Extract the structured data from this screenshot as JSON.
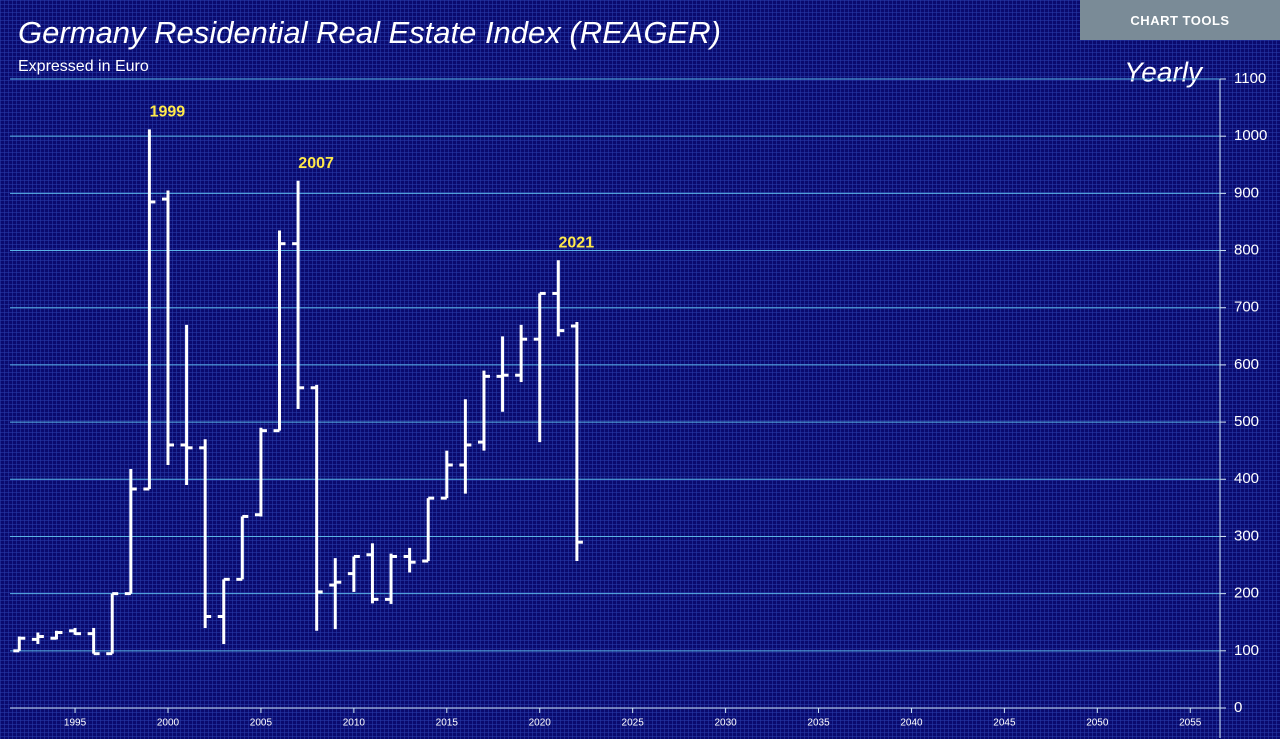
{
  "chart_data": {
    "type": "ohlc",
    "title": "Germany Residential Real Estate Index (REAGER)",
    "subtitle": "Expressed in Euro",
    "period": "Yearly",
    "button": "CHART TOOLS",
    "x": [
      1992,
      1993,
      1994,
      1995,
      1996,
      1997,
      1998,
      1999,
      2000,
      2001,
      2002,
      2003,
      2004,
      2005,
      2006,
      2007,
      2008,
      2009,
      2010,
      2011,
      2012,
      2013,
      2014,
      2015,
      2016,
      2017,
      2018,
      2019,
      2020,
      2021,
      2022
    ],
    "series": [
      {
        "color": "#ffffff",
        "open": [
          100,
          120,
          122,
          135,
          130,
          95,
          200,
          383,
          890,
          460,
          455,
          160,
          225,
          338,
          485,
          812,
          560,
          215,
          235,
          268,
          190,
          265,
          257,
          367,
          425,
          465,
          580,
          582,
          645,
          725,
          668
        ],
        "high": [
          125,
          132,
          135,
          140,
          140,
          200,
          418,
          1012,
          905,
          670,
          470,
          225,
          335,
          490,
          835,
          922,
          565,
          262,
          265,
          288,
          270,
          280,
          367,
          450,
          540,
          590,
          650,
          670,
          725,
          783,
          675
        ],
        "low": [
          100,
          112,
          120,
          128,
          95,
          95,
          200,
          383,
          425,
          390,
          140,
          112,
          225,
          335,
          485,
          523,
          135,
          138,
          203,
          183,
          182,
          237,
          257,
          367,
          375,
          450,
          518,
          570,
          465,
          650,
          257
        ],
        "close": [
          122,
          125,
          132,
          130,
          95,
          200,
          383,
          885,
          460,
          455,
          160,
          225,
          335,
          485,
          812,
          560,
          203,
          220,
          265,
          190,
          265,
          255,
          367,
          425,
          460,
          580,
          582,
          645,
          725,
          660,
          290
        ]
      }
    ],
    "annotations": [
      {
        "text": "1999",
        "x": 1999
      },
      {
        "text": "2007",
        "x": 2007
      },
      {
        "text": "2021",
        "x": 2021
      }
    ],
    "annotation_color": "#ffe94a",
    "grid_color": "#5ab4e6",
    "xlim": [
      1991.5,
      2056.6
    ],
    "xticks": [
      1995,
      2000,
      2005,
      2010,
      2015,
      2020,
      2025,
      2030,
      2035,
      2040,
      2045,
      2050,
      2055
    ],
    "ylim": [
      0,
      1100
    ],
    "yticks": [
      0,
      100,
      200,
      300,
      400,
      500,
      600,
      700,
      800,
      900,
      1000,
      1100
    ],
    "grid": true
  }
}
